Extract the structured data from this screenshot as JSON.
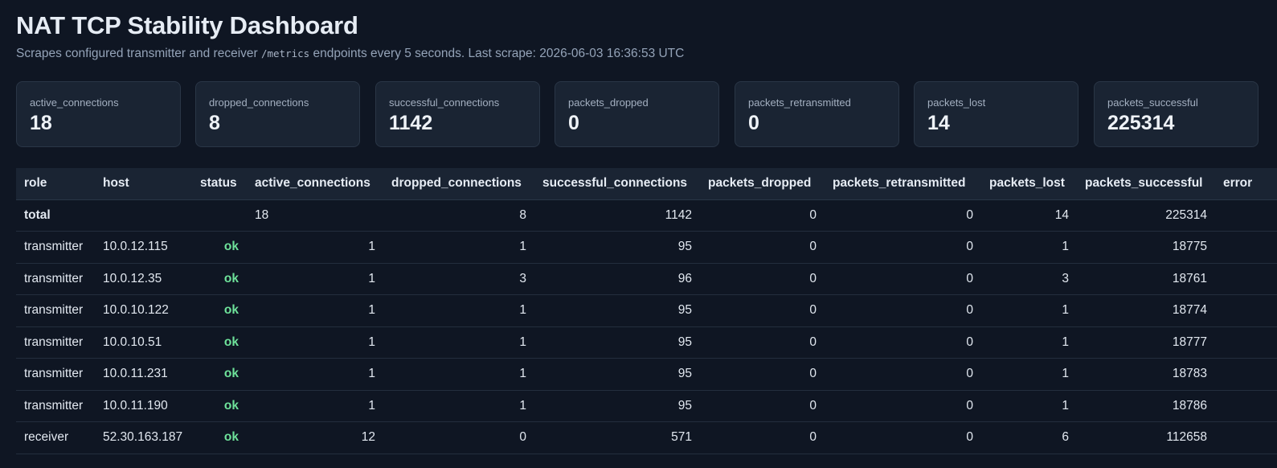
{
  "header": {
    "title": "NAT TCP Stability Dashboard",
    "subtitle_before": "Scrapes configured transmitter and receiver ",
    "subtitle_code": "/metrics",
    "subtitle_after": " endpoints every 5 seconds. Last scrape: 2026-06-03 16:36:53 UTC"
  },
  "cards": [
    {
      "label": "active_connections",
      "value": "18"
    },
    {
      "label": "dropped_connections",
      "value": "8"
    },
    {
      "label": "successful_connections",
      "value": "1142"
    },
    {
      "label": "packets_dropped",
      "value": "0"
    },
    {
      "label": "packets_retransmitted",
      "value": "0"
    },
    {
      "label": "packets_lost",
      "value": "14"
    },
    {
      "label": "packets_successful",
      "value": "225314"
    }
  ],
  "table": {
    "columns": [
      "role",
      "host",
      "status",
      "active_connections",
      "dropped_connections",
      "successful_connections",
      "packets_dropped",
      "packets_retransmitted",
      "packets_lost",
      "packets_successful",
      "error"
    ],
    "total": {
      "role": "total",
      "host": "",
      "status": "",
      "active_connections": "18",
      "dropped_connections": "8",
      "successful_connections": "1142",
      "packets_dropped": "0",
      "packets_retransmitted": "0",
      "packets_lost": "14",
      "packets_successful": "225314",
      "error": ""
    },
    "rows": [
      {
        "role": "transmitter",
        "host": "10.0.12.115",
        "status": "ok",
        "active_connections": "1",
        "dropped_connections": "1",
        "successful_connections": "95",
        "packets_dropped": "0",
        "packets_retransmitted": "0",
        "packets_lost": "1",
        "packets_successful": "18775",
        "error": ""
      },
      {
        "role": "transmitter",
        "host": "10.0.12.35",
        "status": "ok",
        "active_connections": "1",
        "dropped_connections": "3",
        "successful_connections": "96",
        "packets_dropped": "0",
        "packets_retransmitted": "0",
        "packets_lost": "3",
        "packets_successful": "18761",
        "error": ""
      },
      {
        "role": "transmitter",
        "host": "10.0.10.122",
        "status": "ok",
        "active_connections": "1",
        "dropped_connections": "1",
        "successful_connections": "95",
        "packets_dropped": "0",
        "packets_retransmitted": "0",
        "packets_lost": "1",
        "packets_successful": "18774",
        "error": ""
      },
      {
        "role": "transmitter",
        "host": "10.0.10.51",
        "status": "ok",
        "active_connections": "1",
        "dropped_connections": "1",
        "successful_connections": "95",
        "packets_dropped": "0",
        "packets_retransmitted": "0",
        "packets_lost": "1",
        "packets_successful": "18777",
        "error": ""
      },
      {
        "role": "transmitter",
        "host": "10.0.11.231",
        "status": "ok",
        "active_connections": "1",
        "dropped_connections": "1",
        "successful_connections": "95",
        "packets_dropped": "0",
        "packets_retransmitted": "0",
        "packets_lost": "1",
        "packets_successful": "18783",
        "error": ""
      },
      {
        "role": "transmitter",
        "host": "10.0.11.190",
        "status": "ok",
        "active_connections": "1",
        "dropped_connections": "1",
        "successful_connections": "95",
        "packets_dropped": "0",
        "packets_retransmitted": "0",
        "packets_lost": "1",
        "packets_successful": "18786",
        "error": ""
      },
      {
        "role": "receiver",
        "host": "52.30.163.187",
        "status": "ok",
        "active_connections": "12",
        "dropped_connections": "0",
        "successful_connections": "571",
        "packets_dropped": "0",
        "packets_retransmitted": "0",
        "packets_lost": "6",
        "packets_successful": "112658",
        "error": ""
      }
    ]
  },
  "colors": {
    "background": "#0f1623",
    "card": "#1a2433",
    "status_ok": "#6ee29a"
  }
}
